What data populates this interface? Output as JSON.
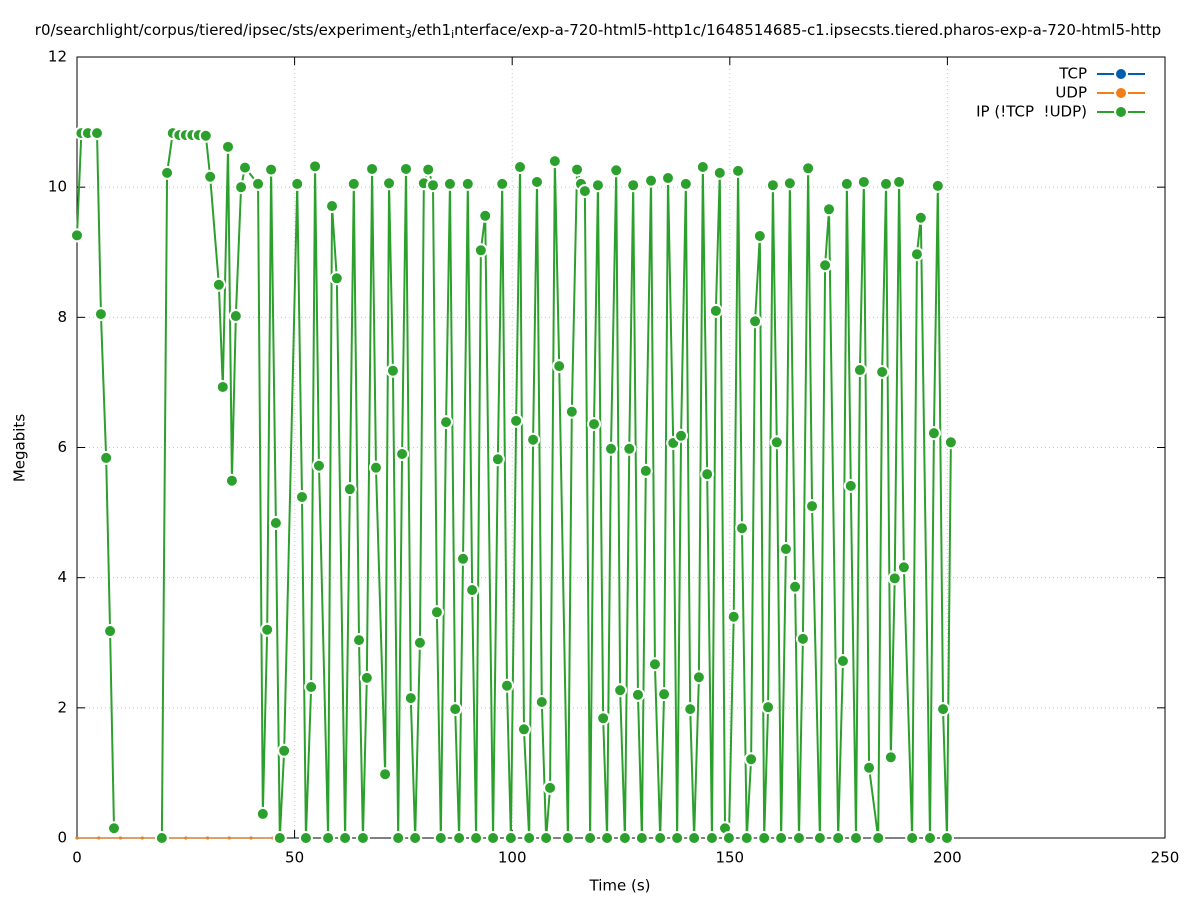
{
  "chart_data": {
    "type": "line",
    "title_parts": [
      "r0/searchlight/corpus/tiered/ipsec/sts/experiment",
      "3",
      "/eth1",
      "i",
      "nterface/exp-a-720-html5-http1c/1648514685-c1.ipsecsts.tiered.pharos-exp-a-720-html5-http"
    ],
    "x_label": "Time (s)",
    "y_label": "Megabits",
    "xlim": [
      0,
      250
    ],
    "xticks": [
      0,
      50,
      100,
      150,
      200,
      250
    ],
    "ylim": [
      0,
      12
    ],
    "yticks": [
      0,
      2,
      4,
      6,
      8,
      10,
      12
    ],
    "grid": true,
    "legend": "top-right",
    "series": [
      {
        "name": "TCP",
        "color": "#0060ad",
        "x": [
          0,
          5,
          10,
          15,
          20,
          25,
          30,
          35,
          40,
          45
        ],
        "values": [
          0,
          0,
          0,
          0,
          0,
          0,
          0,
          0,
          0,
          0
        ]
      },
      {
        "name": "UDP",
        "color": "#f07f1a",
        "x": [
          0,
          5,
          10,
          15,
          20,
          25,
          30,
          35,
          40,
          45
        ],
        "values": [
          0,
          0,
          0,
          0,
          0,
          0,
          0,
          0,
          0,
          0
        ]
      },
      {
        "name": "IP (!TCP  !UDP)",
        "color": "#2ca02c",
        "x": [
          0,
          1,
          2.5,
          4.6,
          5.5,
          6.7,
          7.6,
          8.5,
          14,
          19.5,
          20.7,
          22,
          23.5,
          25,
          26.5,
          28,
          29.6,
          30.6,
          32.6,
          33.5,
          34.7,
          35.6,
          36.5,
          37.7,
          38.6,
          41.6,
          42.7,
          43.7,
          44.6,
          45.7,
          46.6,
          47.6,
          50.6,
          51.7,
          52.6,
          53.8,
          54.7,
          55.6,
          57.7,
          58.6,
          59.7,
          61.6,
          62.7,
          63.6,
          64.8,
          65.7,
          66.6,
          67.8,
          68.7,
          70.8,
          71.7,
          72.6,
          73.8,
          74.7,
          75.6,
          76.7,
          77.7,
          78.8,
          79.7,
          80.7,
          81.8,
          82.7,
          83.6,
          84.8,
          85.7,
          86.9,
          87.8,
          88.7,
          89.8,
          90.8,
          91.7,
          92.8,
          93.8,
          95.6,
          96.7,
          97.7,
          98.8,
          99.7,
          100.9,
          101.8,
          102.7,
          103.9,
          104.8,
          105.7,
          106.8,
          107.8,
          108.7,
          109.8,
          110.8,
          112.8,
          113.7,
          114.9,
          115.8,
          116.7,
          117.9,
          118.8,
          119.7,
          120.9,
          121.8,
          122.7,
          123.9,
          124.8,
          125.9,
          126.9,
          127.8,
          128.9,
          129.8,
          130.7,
          131.9,
          132.8,
          134,
          134.9,
          135.8,
          137,
          137.9,
          138.8,
          139.9,
          140.9,
          141.8,
          142.9,
          143.8,
          144.8,
          145.9,
          146.8,
          147.7,
          148.9,
          149.8,
          150.9,
          151.9,
          152.8,
          153.9,
          154.9,
          155.8,
          156.9,
          157.9,
          158.8,
          159.9,
          160.8,
          161.8,
          162.9,
          163.8,
          165,
          165.9,
          166.8,
          168,
          168.9,
          170.7,
          171.9,
          172.8,
          174.9,
          176,
          176.9,
          177.8,
          179,
          179.9,
          180.8,
          182,
          184.1,
          185,
          185.9,
          187,
          187.9,
          188.9,
          190,
          191.9,
          193,
          193.9,
          196,
          196.9,
          197.8,
          199,
          199.9,
          200.8
        ],
        "values": [
          9.26,
          10.83,
          10.83,
          10.83,
          8.05,
          5.84,
          3.18,
          0.15,
          null,
          0,
          10.22,
          10.83,
          10.8,
          10.8,
          10.8,
          10.8,
          10.79,
          10.16,
          8.5,
          6.93,
          10.62,
          5.49,
          8.02,
          10,
          10.3,
          10.05,
          0.37,
          3.2,
          10.27,
          4.84,
          0,
          1.34,
          10.05,
          5.24,
          0,
          2.32,
          10.32,
          5.72,
          0,
          9.71,
          8.6,
          0,
          5.36,
          10.05,
          3.04,
          0,
          2.46,
          10.28,
          5.69,
          0.98,
          10.06,
          7.18,
          0,
          5.9,
          10.28,
          2.15,
          0,
          3,
          10.06,
          10.27,
          10.03,
          3.47,
          0,
          6.39,
          10.05,
          1.98,
          0,
          4.29,
          10.05,
          3.81,
          0,
          9.03,
          9.56,
          0,
          5.82,
          10.05,
          2.34,
          0,
          6.41,
          10.31,
          1.67,
          0,
          6.12,
          10.08,
          2.09,
          0,
          0.77,
          10.4,
          7.25,
          0,
          6.55,
          10.27,
          10.05,
          9.94,
          0,
          6.36,
          10.03,
          1.84,
          0,
          5.98,
          10.26,
          2.27,
          0,
          5.98,
          10.03,
          2.2,
          0,
          5.64,
          10.1,
          2.67,
          0,
          2.21,
          10.14,
          6.07,
          0,
          6.18,
          10.05,
          1.98,
          0,
          2.47,
          10.31,
          5.59,
          0,
          8.1,
          10.22,
          0.15,
          0,
          3.4,
          10.25,
          4.76,
          0,
          1.21,
          7.94,
          9.25,
          0,
          2.01,
          10.03,
          6.08,
          0,
          4.44,
          10.06,
          3.86,
          0,
          3.06,
          10.29,
          5.1,
          0,
          8.8,
          9.66,
          0,
          2.72,
          10.05,
          5.41,
          0,
          7.19,
          10.08,
          1.08,
          0,
          7.16,
          10.05,
          1.24,
          3.99,
          10.08,
          4.16,
          0,
          8.97,
          9.53,
          0,
          6.22,
          10.02,
          1.98,
          0,
          6.08
        ]
      }
    ]
  }
}
